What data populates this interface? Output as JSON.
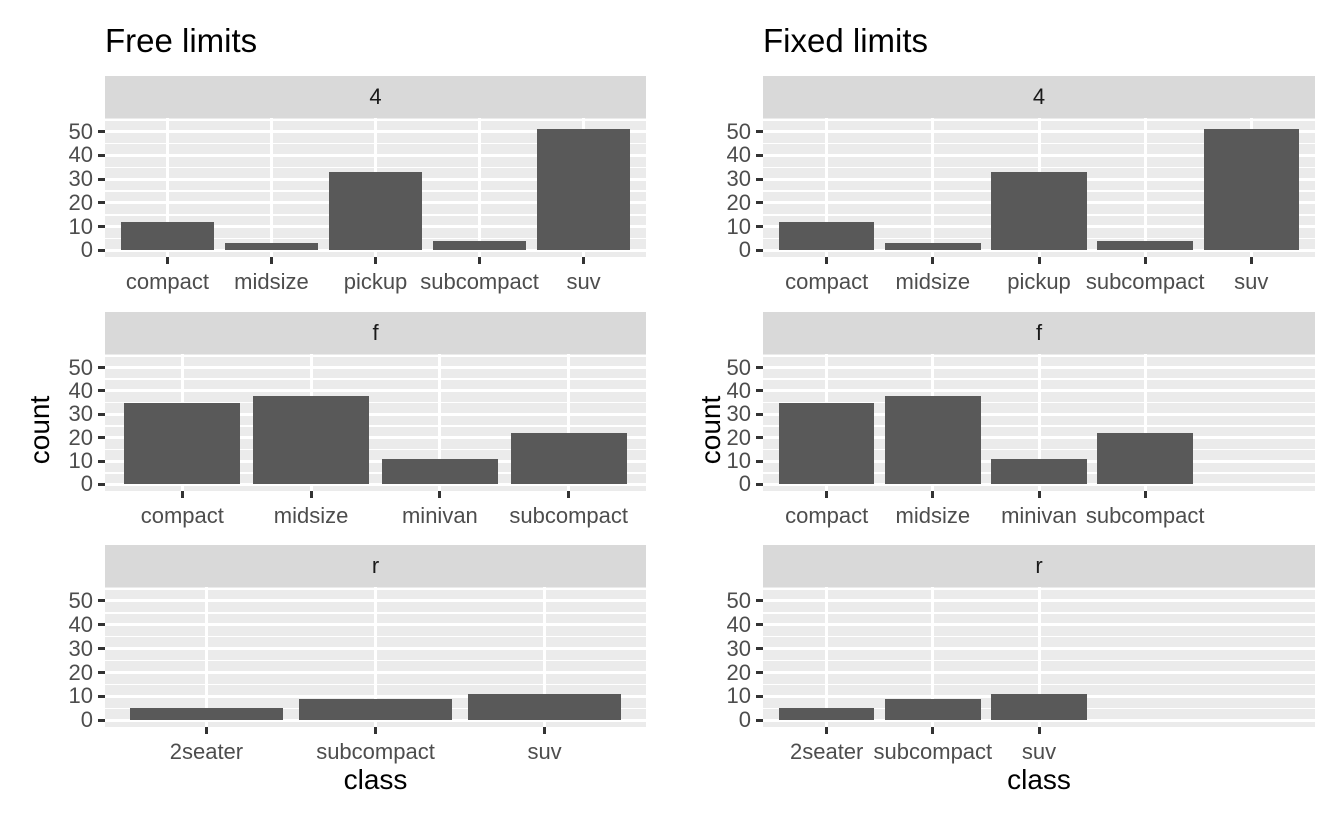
{
  "colors": {
    "background": "#FFFFFF",
    "panel_background": "#EBEBEB",
    "strip_background": "#D9D9D9",
    "gridline": "#FFFFFF",
    "bar_fill": "#595959",
    "axis_text": "#4D4D4D",
    "tick_mark": "#333333",
    "title_text": "#000000",
    "strip_text": "#1A1A1A"
  },
  "chart_data": [
    {
      "type": "bar",
      "title": "Free limits",
      "xlabel": "class",
      "ylabel": "count",
      "legend": "none",
      "grid": "on",
      "x_mode": "free",
      "y_range": [
        -2.8,
        55.8
      ],
      "y_ticks": [
        0,
        10,
        20,
        30,
        40,
        50
      ],
      "y_minor_ticks": [
        5,
        15,
        25,
        35,
        45,
        55
      ],
      "facets": [
        {
          "label": "4",
          "categories": [
            "compact",
            "midsize",
            "pickup",
            "subcompact",
            "suv"
          ],
          "values": [
            12,
            3,
            33,
            4,
            51
          ]
        },
        {
          "label": "f",
          "categories": [
            "compact",
            "midsize",
            "minivan",
            "subcompact"
          ],
          "values": [
            35,
            38,
            11,
            22
          ]
        },
        {
          "label": "r",
          "categories": [
            "2seater",
            "subcompact",
            "suv"
          ],
          "values": [
            5,
            9,
            11
          ]
        }
      ]
    },
    {
      "type": "bar",
      "title": "Fixed limits",
      "xlabel": "class",
      "ylabel": "count",
      "legend": "none",
      "grid": "on",
      "x_mode": "fixed",
      "slots": 5,
      "y_range": [
        -2.8,
        55.8
      ],
      "y_ticks": [
        0,
        10,
        20,
        30,
        40,
        50
      ],
      "y_minor_ticks": [
        5,
        15,
        25,
        35,
        45,
        55
      ],
      "facets": [
        {
          "label": "4",
          "categories": [
            "compact",
            "midsize",
            "pickup",
            "subcompact",
            "suv"
          ],
          "values": [
            12,
            3,
            33,
            4,
            51
          ]
        },
        {
          "label": "f",
          "categories": [
            "compact",
            "midsize",
            "minivan",
            "subcompact"
          ],
          "values": [
            35,
            38,
            11,
            22
          ]
        },
        {
          "label": "r",
          "categories": [
            "2seater",
            "subcompact",
            "suv"
          ],
          "values": [
            5,
            9,
            11
          ]
        }
      ]
    }
  ]
}
